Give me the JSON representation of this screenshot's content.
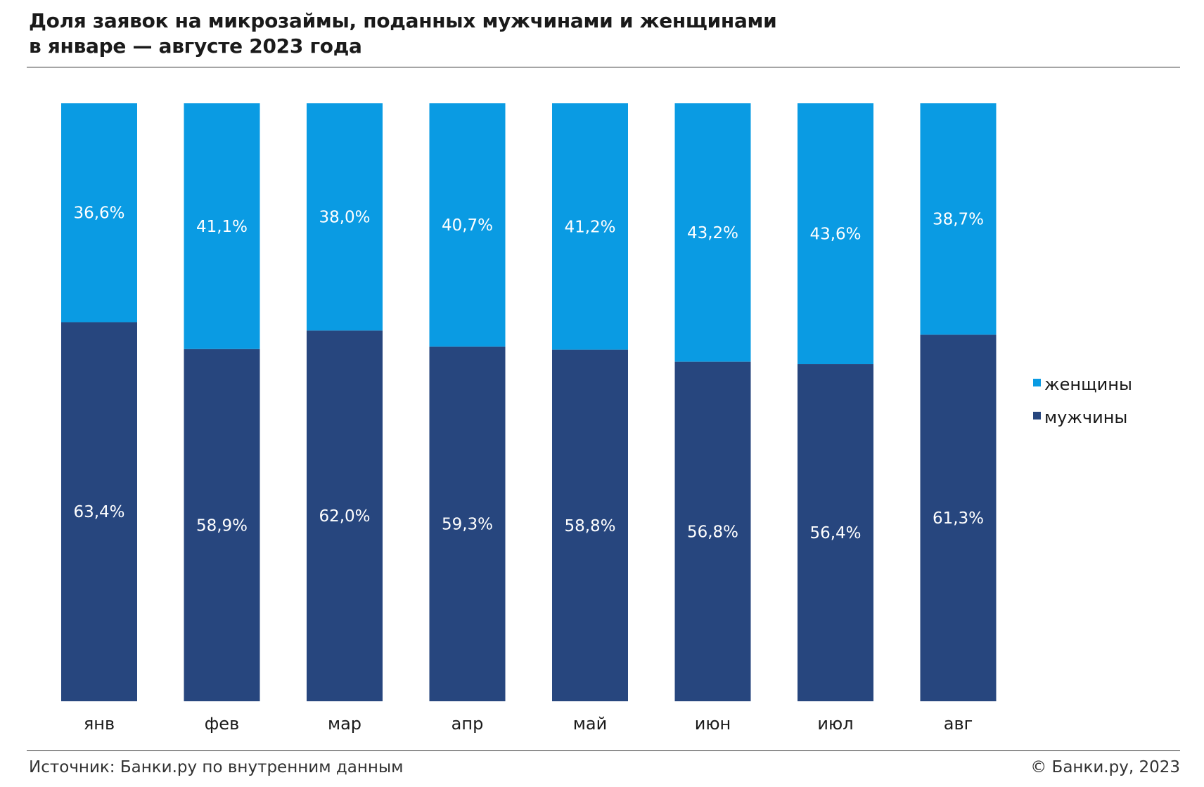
{
  "header": {
    "title_line1": "Доля заявок на микрозаймы, поданных мужчинами и женщинами",
    "title_line2": "в январе — августе 2023 года"
  },
  "footer": {
    "source": "Источник: Банки.ру по внутренним данным",
    "copyright": "© Банки.ру, 2023"
  },
  "colors": {
    "women": "#0a9be3",
    "men": "#27467e",
    "label_text": "#ffffff",
    "axis_text": "#1a1a1a"
  },
  "chart_data": {
    "type": "bar",
    "stacked": true,
    "categories": [
      "янв",
      "фев",
      "мар",
      "апр",
      "май",
      "июн",
      "июл",
      "авг"
    ],
    "series": [
      {
        "name": "мужчины",
        "values": [
          63.4,
          58.9,
          62.0,
          59.3,
          58.8,
          56.8,
          56.4,
          61.3
        ],
        "labels": [
          "63,4%",
          "58,9%",
          "62,0%",
          "59,3%",
          "58,8%",
          "56,8%",
          "56,4%",
          "61,3%"
        ]
      },
      {
        "name": "женщины",
        "values": [
          36.6,
          41.1,
          38.0,
          40.7,
          41.2,
          43.2,
          43.6,
          38.7
        ],
        "labels": [
          "36,6%",
          "41,1%",
          "38,0%",
          "40,7%",
          "41,2%",
          "43,2%",
          "43,6%",
          "38,7%"
        ]
      }
    ],
    "legend": [
      {
        "name": "женщины",
        "series_index": 1
      },
      {
        "name": "мужчины",
        "series_index": 0
      }
    ],
    "ylim": [
      0,
      100
    ],
    "grid": false,
    "legend_position": "right"
  }
}
